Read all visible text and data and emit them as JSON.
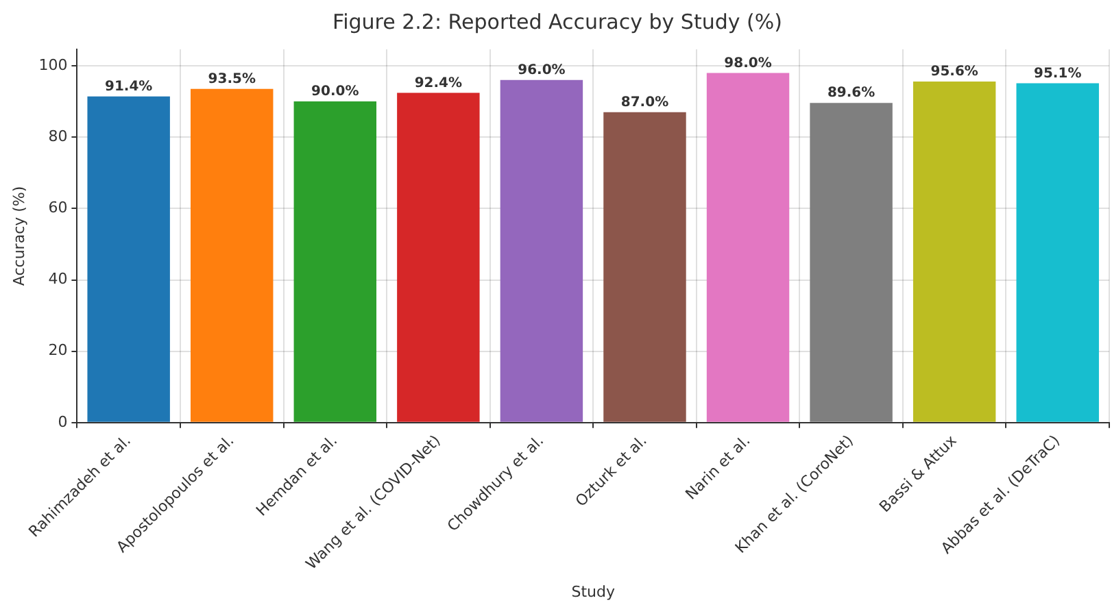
{
  "chart_data": {
    "type": "bar",
    "title": "Figure 2.2: Reported Accuracy by Study (%)",
    "xlabel": "Study",
    "ylabel": "Accuracy (%)",
    "categories": [
      "Rahimzadeh et al.",
      "Apostolopoulos et al.",
      "Hemdan et al.",
      "Wang et al. (COVID-Net)",
      "Chowdhury et al.",
      "Ozturk et al.",
      "Narin et al.",
      "Khan et al. (CoroNet)",
      "Bassi & Attux",
      "Abbas et al. (DeTraC)"
    ],
    "values": [
      91.4,
      93.5,
      90.0,
      92.4,
      96.0,
      87.0,
      98.0,
      89.6,
      95.6,
      95.1
    ],
    "value_labels": [
      "91.4%",
      "93.5%",
      "90.0%",
      "92.4%",
      "96.0%",
      "87.0%",
      "98.0%",
      "89.6%",
      "95.6%",
      "95.1%"
    ],
    "colors": [
      "#1f77b4",
      "#ff7f0e",
      "#2ca02c",
      "#d62728",
      "#9467bd",
      "#8c564b",
      "#e377c2",
      "#7f7f7f",
      "#bcbd22",
      "#17becf"
    ],
    "ylim": [
      0,
      104.6
    ],
    "yticks": [
      0,
      20,
      40,
      60,
      80,
      100
    ],
    "grid": true
  }
}
